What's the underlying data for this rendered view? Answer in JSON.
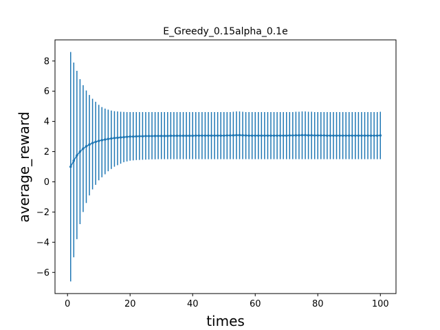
{
  "chart_data": {
    "type": "line",
    "title": "E_Greedy_0.15alpha_0.1e",
    "xlabel": "times",
    "ylabel": "average_reward",
    "xlim": [
      -4,
      105
    ],
    "ylim": [
      -7.4,
      9.4
    ],
    "xticks": [
      0,
      20,
      40,
      60,
      80,
      100
    ],
    "yticks": [
      -6,
      -4,
      -2,
      0,
      2,
      4,
      6,
      8
    ],
    "xtick_labels": [
      "0",
      "20",
      "40",
      "60",
      "80",
      "100"
    ],
    "ytick_labels": [
      "−6",
      "−4",
      "−2",
      "0",
      "2",
      "4",
      "6",
      "8"
    ],
    "grid": false,
    "series_color": "#1f77b4",
    "series": [
      {
        "x": [
          1,
          2,
          3,
          4,
          5,
          6,
          7,
          8,
          9,
          10,
          11,
          12,
          13,
          14,
          15,
          16,
          17,
          18,
          19,
          20,
          21,
          22,
          23,
          24,
          25,
          26,
          27,
          28,
          29,
          30,
          31,
          32,
          33,
          34,
          35,
          36,
          37,
          38,
          39,
          40,
          41,
          42,
          43,
          44,
          45,
          46,
          47,
          48,
          49,
          50,
          51,
          52,
          53,
          54,
          55,
          56,
          57,
          58,
          59,
          60,
          61,
          62,
          63,
          64,
          65,
          66,
          67,
          68,
          69,
          70,
          71,
          72,
          73,
          74,
          75,
          76,
          77,
          78,
          79,
          80,
          81,
          82,
          83,
          84,
          85,
          86,
          87,
          88,
          89,
          90,
          91,
          92,
          93,
          94,
          95,
          96,
          97,
          98,
          99,
          100
        ],
        "y": [
          1.0,
          1.4,
          1.75,
          2.0,
          2.2,
          2.35,
          2.47,
          2.57,
          2.65,
          2.71,
          2.76,
          2.8,
          2.84,
          2.87,
          2.9,
          2.92,
          2.94,
          2.96,
          2.98,
          3.0,
          3.0,
          3.01,
          3.02,
          3.02,
          3.03,
          3.03,
          3.03,
          3.04,
          3.04,
          3.04,
          3.04,
          3.04,
          3.05,
          3.05,
          3.05,
          3.05,
          3.05,
          3.05,
          3.05,
          3.05,
          3.06,
          3.06,
          3.06,
          3.06,
          3.06,
          3.06,
          3.06,
          3.06,
          3.06,
          3.06,
          3.07,
          3.07,
          3.08,
          3.09,
          3.09,
          3.08,
          3.07,
          3.06,
          3.06,
          3.06,
          3.06,
          3.06,
          3.06,
          3.06,
          3.06,
          3.06,
          3.06,
          3.06,
          3.06,
          3.06,
          3.07,
          3.07,
          3.08,
          3.08,
          3.09,
          3.09,
          3.08,
          3.08,
          3.07,
          3.07,
          3.07,
          3.07,
          3.06,
          3.06,
          3.06,
          3.06,
          3.06,
          3.06,
          3.06,
          3.06,
          3.06,
          3.06,
          3.06,
          3.06,
          3.06,
          3.06,
          3.06,
          3.06,
          3.06,
          3.07
        ],
        "err_low": [
          -6.6,
          -5.0,
          -3.8,
          -2.8,
          -2.0,
          -1.4,
          -0.9,
          -0.5,
          -0.2,
          0.1,
          0.3,
          0.5,
          0.7,
          0.85,
          1.0,
          1.1,
          1.2,
          1.3,
          1.35,
          1.4,
          1.42,
          1.44,
          1.45,
          1.46,
          1.47,
          1.48,
          1.49,
          1.49,
          1.5,
          1.5,
          1.5,
          1.5,
          1.5,
          1.5,
          1.5,
          1.5,
          1.5,
          1.5,
          1.5,
          1.5,
          1.5,
          1.5,
          1.5,
          1.5,
          1.5,
          1.5,
          1.5,
          1.5,
          1.5,
          1.5,
          1.5,
          1.5,
          1.5,
          1.5,
          1.5,
          1.5,
          1.5,
          1.5,
          1.5,
          1.5,
          1.5,
          1.5,
          1.5,
          1.5,
          1.5,
          1.5,
          1.5,
          1.5,
          1.5,
          1.5,
          1.5,
          1.5,
          1.5,
          1.5,
          1.5,
          1.5,
          1.5,
          1.5,
          1.5,
          1.5,
          1.5,
          1.5,
          1.5,
          1.5,
          1.5,
          1.5,
          1.5,
          1.5,
          1.5,
          1.5,
          1.5,
          1.5,
          1.5,
          1.5,
          1.5,
          1.5,
          1.5,
          1.5,
          1.5,
          1.5
        ],
        "err_high": [
          8.6,
          7.9,
          7.35,
          6.8,
          6.4,
          6.05,
          5.75,
          5.5,
          5.3,
          5.1,
          4.95,
          4.85,
          4.78,
          4.72,
          4.68,
          4.66,
          4.64,
          4.63,
          4.62,
          4.62,
          4.62,
          4.62,
          4.62,
          4.62,
          4.62,
          4.62,
          4.62,
          4.62,
          4.62,
          4.62,
          4.62,
          4.62,
          4.62,
          4.62,
          4.62,
          4.62,
          4.62,
          4.62,
          4.62,
          4.62,
          4.62,
          4.62,
          4.62,
          4.62,
          4.62,
          4.62,
          4.62,
          4.62,
          4.62,
          4.62,
          4.62,
          4.62,
          4.64,
          4.66,
          4.66,
          4.64,
          4.62,
          4.62,
          4.62,
          4.62,
          4.62,
          4.62,
          4.62,
          4.62,
          4.62,
          4.62,
          4.62,
          4.62,
          4.62,
          4.62,
          4.62,
          4.62,
          4.64,
          4.64,
          4.66,
          4.66,
          4.64,
          4.64,
          4.62,
          4.62,
          4.62,
          4.62,
          4.62,
          4.62,
          4.62,
          4.62,
          4.62,
          4.62,
          4.62,
          4.62,
          4.62,
          4.62,
          4.62,
          4.62,
          4.62,
          4.62,
          4.62,
          4.62,
          4.62,
          4.64
        ]
      }
    ]
  }
}
